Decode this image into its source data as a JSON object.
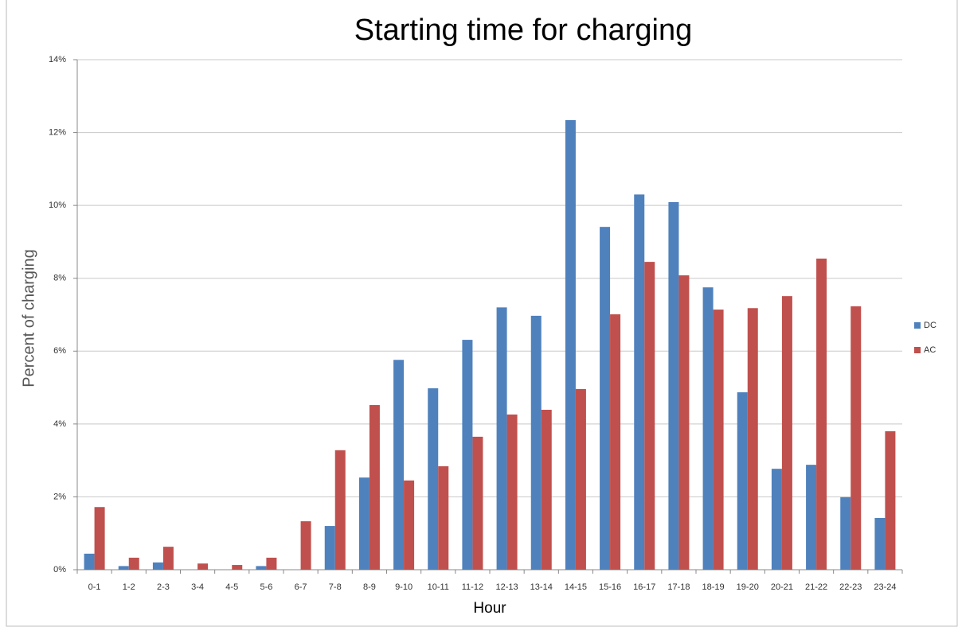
{
  "chart_data": {
    "type": "bar",
    "title": "Starting time for charging",
    "x_label": "Hour",
    "y_label": "Percent of charging",
    "categories": [
      "0-1",
      "1-2",
      "2-3",
      "3-4",
      "4-5",
      "5-6",
      "6-7",
      "7-8",
      "8-9",
      "9-10",
      "10-11",
      "11-12",
      "12-13",
      "13-14",
      "14-15",
      "15-16",
      "16-17",
      "17-18",
      "18-19",
      "19-20",
      "20-21",
      "21-22",
      "22-23",
      "23-24"
    ],
    "series": [
      {
        "name": "DC",
        "color": "#4f81bd",
        "values": [
          0.44,
          0.1,
          0.2,
          0,
          0,
          0.1,
          0,
          1.2,
          2.53,
          5.76,
          4.98,
          6.31,
          7.2,
          6.97,
          12.34,
          9.41,
          10.3,
          10.09,
          7.75,
          4.87,
          2.77,
          2.88,
          1.99,
          1.42
        ]
      },
      {
        "name": "AC",
        "color": "#c0504d",
        "values": [
          1.72,
          0.33,
          0.63,
          0.17,
          0.13,
          0.33,
          1.33,
          3.28,
          4.52,
          2.45,
          2.84,
          3.65,
          4.26,
          4.39,
          4.96,
          7.01,
          8.45,
          8.08,
          7.14,
          7.18,
          7.51,
          8.54,
          7.23,
          3.8
        ]
      }
    ],
    "ylim": [
      0,
      14
    ],
    "yticks": [
      {
        "value": 0,
        "label": "0%"
      },
      {
        "value": 2,
        "label": "2%"
      },
      {
        "value": 4,
        "label": "4%"
      },
      {
        "value": 6,
        "label": "6%"
      },
      {
        "value": 8,
        "label": "8%"
      },
      {
        "value": 10,
        "label": "10%"
      },
      {
        "value": 12,
        "label": "12%"
      },
      {
        "value": 14,
        "label": "14%"
      }
    ],
    "grid": true,
    "legend": "right"
  }
}
